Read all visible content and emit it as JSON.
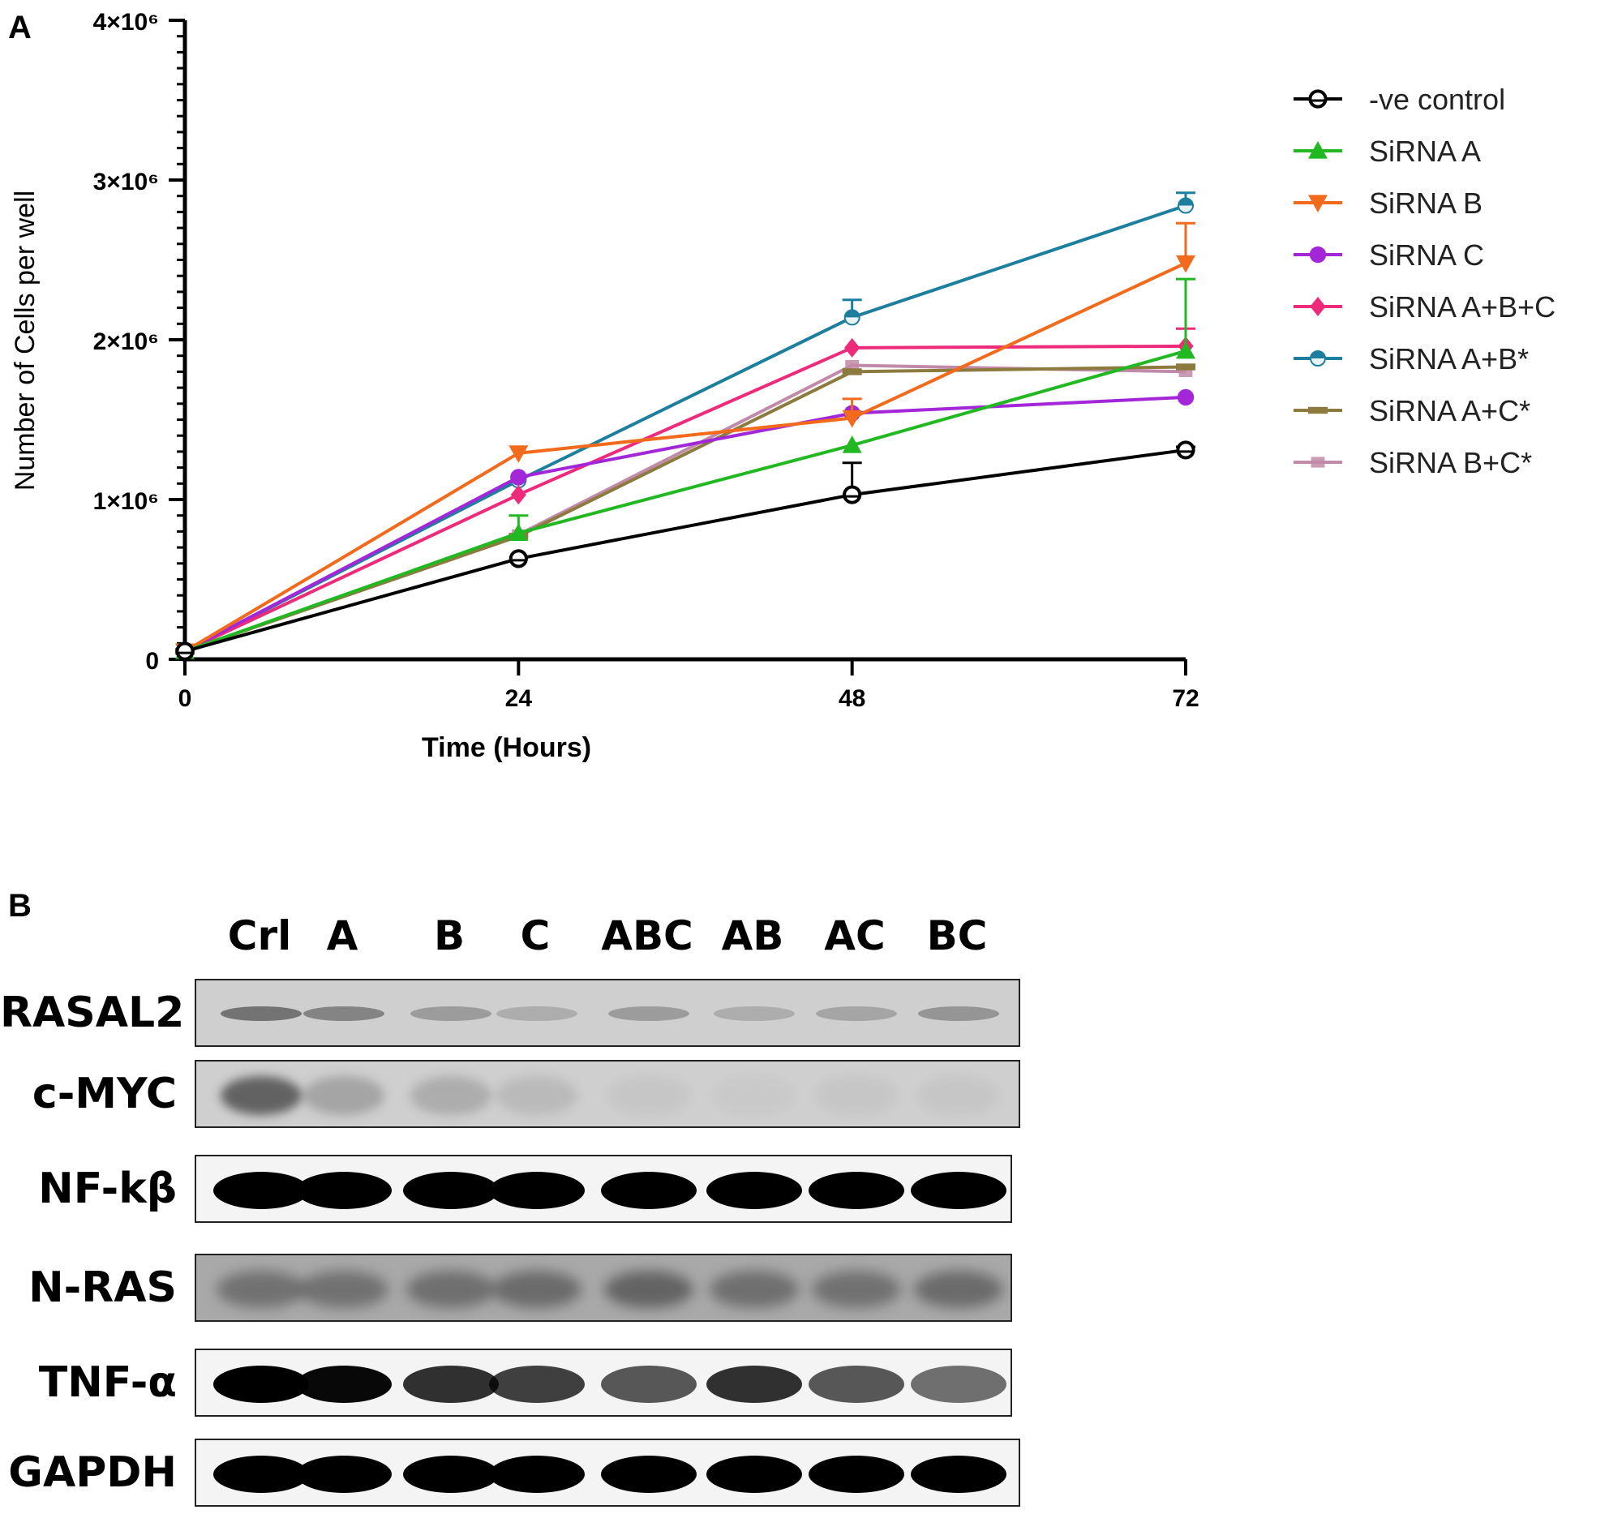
{
  "panel_a": {
    "label": "A",
    "chart_data": {
      "type": "line",
      "xlabel": "Time (Hours)",
      "ylabel": "Number of Cells per well",
      "x": [
        0,
        24,
        48,
        72
      ],
      "xlim": [
        0,
        72
      ],
      "ylim": [
        0,
        4000000
      ],
      "x_tick_labels": [
        "0",
        "24",
        "48",
        "72"
      ],
      "y_tick_values": [
        0,
        1000000,
        2000000,
        3000000,
        4000000
      ],
      "y_tick_labels": [
        "0",
        "1×10⁶",
        "2×10⁶",
        "3×10⁶",
        "4×10⁶"
      ],
      "grid": false,
      "legend_position": "right",
      "series": [
        {
          "name": "-ve control",
          "marker": "circle-open",
          "color": "#000000",
          "values": [
            50000,
            630000,
            1030000,
            1310000
          ],
          "err": [
            0,
            0,
            200000,
            20000
          ]
        },
        {
          "name": "SiRNA A",
          "marker": "triangle-up",
          "color": "#22b822",
          "values": [
            50000,
            790000,
            1340000,
            1930000
          ],
          "err": [
            0,
            110000,
            0,
            450000
          ]
        },
        {
          "name": "SiRNA B",
          "marker": "triangle-down",
          "color": "#f26a1b",
          "values": [
            50000,
            1290000,
            1510000,
            2480000
          ],
          "err": [
            0,
            0,
            120000,
            250000
          ]
        },
        {
          "name": "SiRNA C",
          "marker": "circle",
          "color": "#a327d9",
          "values": [
            50000,
            1140000,
            1540000,
            1640000
          ],
          "err": [
            0,
            0,
            0,
            0
          ]
        },
        {
          "name": "SiRNA A+B+C",
          "marker": "diamond",
          "color": "#ee2a7b",
          "values": [
            50000,
            1030000,
            1950000,
            1960000
          ],
          "err": [
            0,
            0,
            0,
            110000
          ]
        },
        {
          "name": "SiRNA A+B*",
          "marker": "half-circle",
          "color": "#1d7f9e",
          "values": [
            50000,
            1120000,
            2140000,
            2840000
          ],
          "err": [
            0,
            0,
            110000,
            80000
          ]
        },
        {
          "name": "SiRNA A+C*",
          "marker": "bar",
          "color": "#8c7a3e",
          "values": [
            50000,
            770000,
            1800000,
            1830000
          ],
          "err": [
            0,
            0,
            0,
            0
          ]
        },
        {
          "name": "SiRNA B+C*",
          "marker": "square",
          "color": "#c08aa8",
          "values": [
            50000,
            780000,
            1840000,
            1800000
          ],
          "err": [
            0,
            0,
            0,
            0
          ]
        }
      ]
    }
  },
  "panel_b": {
    "label": "B",
    "lanes": [
      "Crl",
      "A",
      "B",
      "C",
      "ABC",
      "AB",
      "AC",
      "BC"
    ],
    "proteins": [
      {
        "name": "RASAL2",
        "intensities": [
          0.55,
          0.45,
          0.3,
          0.2,
          0.3,
          0.2,
          0.25,
          0.35
        ]
      },
      {
        "name": "c-MYC",
        "intensities": [
          0.65,
          0.25,
          0.2,
          0.12,
          0.05,
          0.03,
          0.05,
          0.05
        ]
      },
      {
        "name": "NF-kβ",
        "intensities": [
          1,
          1,
          1,
          1,
          1,
          1,
          1,
          1
        ]
      },
      {
        "name": "N-RAS",
        "intensities": [
          0.3,
          0.3,
          0.32,
          0.35,
          0.4,
          0.32,
          0.3,
          0.35
        ]
      },
      {
        "name": "TNF-α",
        "intensities": [
          1,
          0.95,
          0.7,
          0.6,
          0.45,
          0.7,
          0.45,
          0.3
        ]
      },
      {
        "name": "GAPDH",
        "intensities": [
          1,
          1,
          1,
          1,
          1,
          1,
          1,
          1
        ]
      }
    ]
  }
}
